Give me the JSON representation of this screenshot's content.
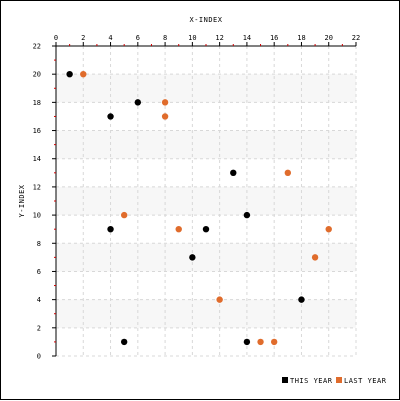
{
  "chart_data": {
    "type": "scatter",
    "xlabel": "X-INDEX",
    "ylabel": "Y-INDEX",
    "xlim": [
      0,
      22
    ],
    "ylim": [
      0,
      22
    ],
    "xticks": [
      0,
      2,
      4,
      6,
      8,
      10,
      12,
      14,
      16,
      18,
      20,
      22
    ],
    "yticks": [
      0,
      2,
      4,
      6,
      8,
      10,
      12,
      14,
      16,
      18,
      20,
      22
    ],
    "x_axis_position": "top",
    "grid": true,
    "legend_position": "bottom-right",
    "series": [
      {
        "name": "THIS YEAR",
        "color": "#000000",
        "points": [
          {
            "x": 1,
            "y": 20
          },
          {
            "x": 4,
            "y": 17
          },
          {
            "x": 6,
            "y": 18
          },
          {
            "x": 13,
            "y": 13
          },
          {
            "x": 14,
            "y": 10
          },
          {
            "x": 4,
            "y": 9
          },
          {
            "x": 11,
            "y": 9
          },
          {
            "x": 10,
            "y": 7
          },
          {
            "x": 18,
            "y": 4
          },
          {
            "x": 5,
            "y": 1
          },
          {
            "x": 14,
            "y": 1
          }
        ]
      },
      {
        "name": "LAST YEAR",
        "color": "#e06c2c",
        "points": [
          {
            "x": 2,
            "y": 20
          },
          {
            "x": 8,
            "y": 18
          },
          {
            "x": 8,
            "y": 17
          },
          {
            "x": 17,
            "y": 13
          },
          {
            "x": 5,
            "y": 10
          },
          {
            "x": 9,
            "y": 9
          },
          {
            "x": 20,
            "y": 9
          },
          {
            "x": 19,
            "y": 7
          },
          {
            "x": 12,
            "y": 4
          },
          {
            "x": 15,
            "y": 1
          },
          {
            "x": 16,
            "y": 1
          }
        ]
      }
    ]
  },
  "style": {
    "tick_accent": "#cc0000",
    "grid_color": "#d8d8d8",
    "band_color": "#f7f7f7"
  }
}
